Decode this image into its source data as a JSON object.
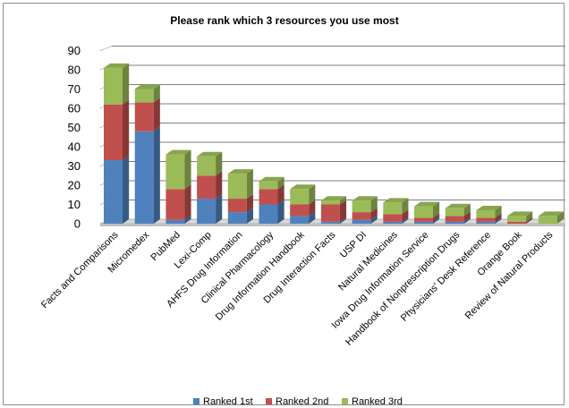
{
  "chart_data": {
    "type": "bar",
    "stacked": true,
    "three_d": true,
    "title": "Please rank which 3 resources you use most",
    "xlabel": "",
    "ylabel": "",
    "ylim": [
      0,
      90
    ],
    "y_ticks": [
      "0",
      "10",
      "20",
      "30",
      "40",
      "50",
      "60",
      "70",
      "80",
      "90"
    ],
    "grid": true,
    "legend_position": "bottom",
    "categories": [
      "Facts and Comparisons",
      "Micromedex",
      "PubMed",
      "Lexi-Comp",
      "AHFS Drug Information",
      "Clinical Pharmacology",
      "Drug Information Handbook",
      "Drug Interaction Facts",
      "USP DI",
      "Natural Medicines",
      "Iowa Drug Information Service",
      "Handbook of Nonprescription Drugs",
      "Physicians' Desk Reference",
      "Orange Book",
      "Review of Natural Products"
    ],
    "series": [
      {
        "name": "Ranked 1st",
        "color": "#4f81bd",
        "values": [
          33,
          48,
          2,
          13,
          6,
          10,
          4,
          1,
          2,
          1,
          1,
          1,
          1,
          0,
          0
        ]
      },
      {
        "name": "Ranked 2nd",
        "color": "#c0504d",
        "values": [
          29,
          15,
          16,
          12,
          7,
          8,
          6,
          9,
          4,
          4,
          2,
          3,
          2,
          1,
          0
        ]
      },
      {
        "name": "Ranked 3rd",
        "color": "#9bbb59",
        "values": [
          19,
          7,
          18,
          10,
          13,
          4,
          8,
          2,
          6,
          6,
          6,
          4,
          4,
          3,
          4
        ]
      }
    ]
  }
}
